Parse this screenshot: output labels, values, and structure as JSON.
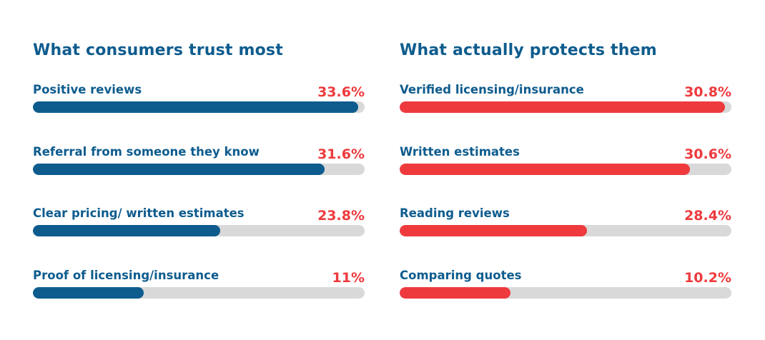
{
  "chart_data": [
    {
      "type": "bar",
      "orientation": "horizontal",
      "title": "What consumers trust most",
      "categories": [
        "Positive reviews",
        "Referral from someone they know",
        "Clear pricing/ written estimates",
        "Proof of licensing/insurance"
      ],
      "values": [
        33.6,
        31.6,
        23.8,
        11
      ],
      "value_labels": [
        "33.6%",
        "31.6%",
        "23.8%",
        "11%"
      ],
      "bar_fill_fraction": [
        0.98,
        0.88,
        0.565,
        0.335
      ],
      "bar_color": "#0e5c8e",
      "track_color": "#d9d9d9",
      "value_color": "#ee3a3d",
      "title_color": "#0e5c8e"
    },
    {
      "type": "bar",
      "orientation": "horizontal",
      "title": "What actually protects them",
      "categories": [
        "Verified licensing/insurance",
        "Written estimates",
        "Reading reviews",
        "Comparing quotes"
      ],
      "values": [
        30.8,
        30.6,
        28.4,
        10.2
      ],
      "value_labels": [
        "30.8%",
        "30.6%",
        "28.4%",
        "10.2%"
      ],
      "bar_fill_fraction": [
        0.98,
        0.875,
        0.565,
        0.335
      ],
      "bar_color": "#ee3a3d",
      "track_color": "#d9d9d9",
      "value_color": "#ee3a3d",
      "title_color": "#0e5c8e"
    }
  ]
}
